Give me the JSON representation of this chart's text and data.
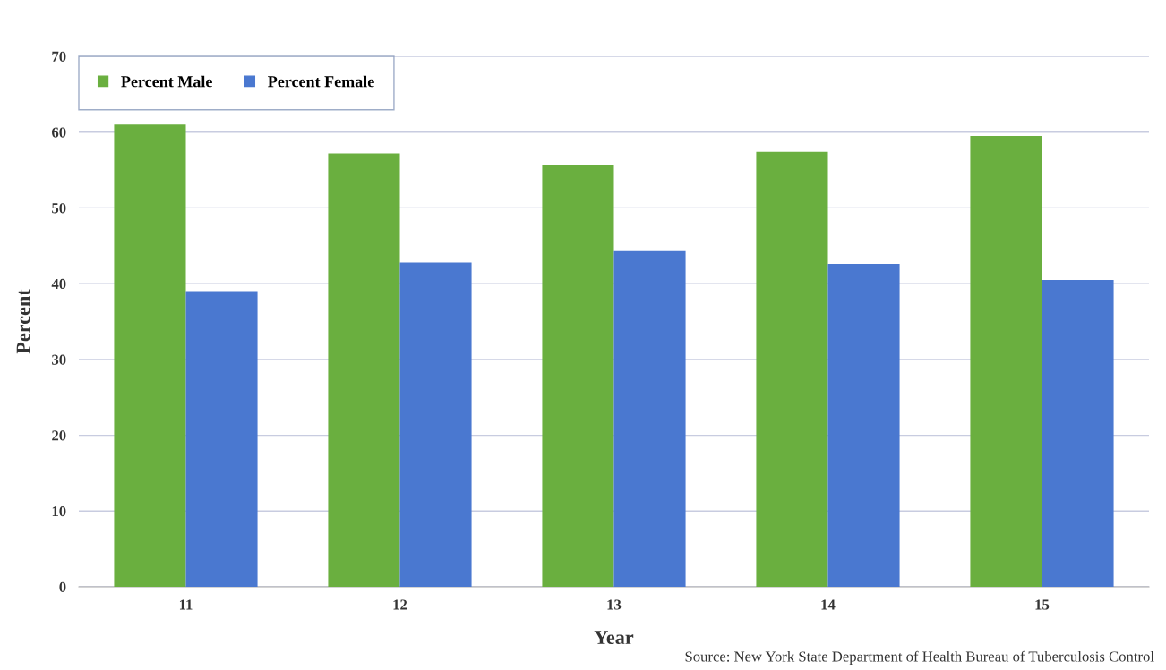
{
  "chart_data": {
    "type": "bar",
    "xlabel": "Year",
    "ylabel": "Percent",
    "categories": [
      "11",
      "12",
      "13",
      "14",
      "15"
    ],
    "series": [
      {
        "name": "Percent Male",
        "color": "#6aaf3f",
        "values": [
          61,
          57.2,
          55.7,
          57.4,
          59.5
        ]
      },
      {
        "name": "Percent Female",
        "color": "#4a78d0",
        "values": [
          39,
          42.8,
          44.3,
          42.6,
          40.5
        ]
      }
    ],
    "ylim": [
      0,
      70
    ],
    "yticks": [
      0,
      10,
      20,
      30,
      40,
      50,
      60,
      70
    ],
    "grid": "y",
    "legend": "top left",
    "annotations": [
      "Source: New York State Department of Health Bureau of Tuberculosis Control"
    ]
  }
}
